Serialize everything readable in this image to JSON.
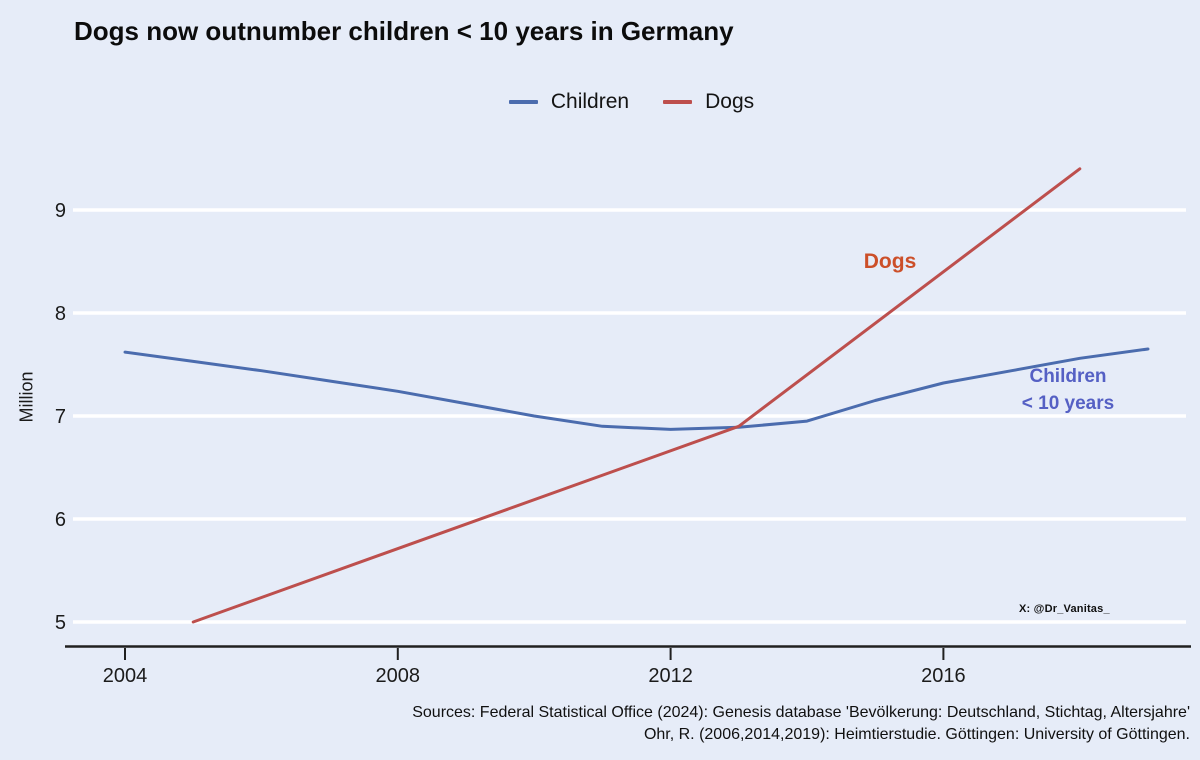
{
  "title": "Dogs now outnumber children < 10 years in Germany",
  "legend": {
    "items": [
      {
        "label": "Children",
        "color": "#4b6cae"
      },
      {
        "label": "Dogs",
        "color": "#bd4f4d"
      }
    ]
  },
  "annotations": {
    "dogs": {
      "text": "Dogs",
      "color": "#cc4f29"
    },
    "children": {
      "line1": "Children",
      "line2": "< 10 years",
      "color": "#5560c4"
    }
  },
  "watermark": "X: @Dr_Vanitas_",
  "sources": {
    "line1": "Sources: Federal Statistical Office (2024): Genesis database 'Bevölkerung: Deutschland, Stichtag, Altersjahre'",
    "line2": "Ohr, R. (2006,2014,2019): Heimtierstudie. Göttingen: University of Göttingen."
  },
  "chart_data": {
    "type": "line",
    "title": "Dogs now outnumber children < 10 years in Germany",
    "xlabel": "",
    "ylabel": "Million",
    "x_ticks": [
      2004,
      2008,
      2012,
      2016
    ],
    "y_ticks": [
      5,
      6,
      7,
      8,
      9
    ],
    "xlim": [
      2003.2,
      2019.6
    ],
    "ylim": [
      4.8,
      9.6
    ],
    "grid": "horizontal-white-on-light-blue",
    "legend_position": "top-center",
    "background": "#e6ecf8",
    "gridline_color": "#ffffff",
    "series": [
      {
        "name": "Children",
        "color": "#4b6cae",
        "x": [
          2004,
          2005,
          2006,
          2007,
          2008,
          2009,
          2010,
          2011,
          2012,
          2013,
          2014,
          2015,
          2016,
          2017,
          2018,
          2019
        ],
        "values": [
          7.62,
          7.53,
          7.44,
          7.34,
          7.24,
          7.12,
          7.0,
          6.9,
          6.87,
          6.89,
          6.95,
          7.15,
          7.32,
          7.44,
          7.56,
          7.65
        ]
      },
      {
        "name": "Dogs",
        "color": "#bd4f4d",
        "x": [
          2005,
          2013,
          2018
        ],
        "values": [
          5.0,
          6.9,
          9.4
        ]
      }
    ]
  }
}
